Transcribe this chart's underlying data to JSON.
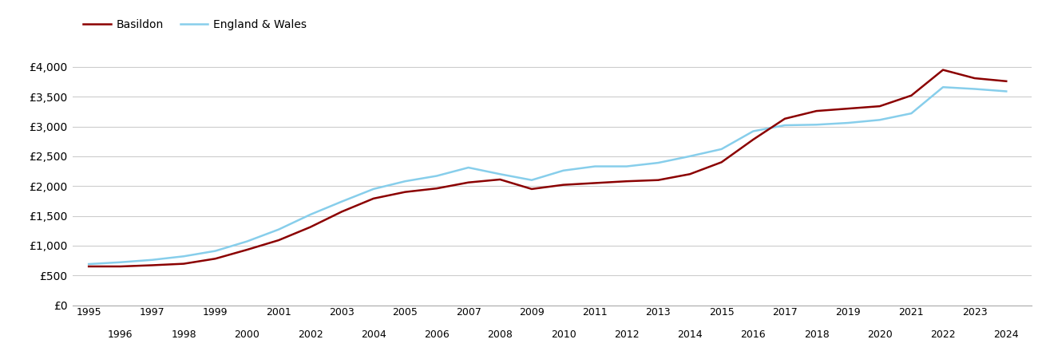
{
  "basildon": {
    "years": [
      1995,
      1996,
      1997,
      1998,
      1999,
      2000,
      2001,
      2002,
      2003,
      2004,
      2005,
      2006,
      2007,
      2008,
      2009,
      2010,
      2011,
      2012,
      2013,
      2014,
      2015,
      2016,
      2017,
      2018,
      2019,
      2020,
      2021,
      2022,
      2023,
      2024
    ],
    "values": [
      650,
      650,
      670,
      695,
      780,
      930,
      1090,
      1310,
      1570,
      1790,
      1900,
      1960,
      2060,
      2110,
      1950,
      2020,
      2050,
      2080,
      2100,
      2200,
      2400,
      2780,
      3130,
      3260,
      3300,
      3340,
      3520,
      3950,
      3810,
      3760
    ]
  },
  "england_wales": {
    "years": [
      1995,
      1996,
      1997,
      1998,
      1999,
      2000,
      2001,
      2002,
      2003,
      2004,
      2005,
      2006,
      2007,
      2008,
      2009,
      2010,
      2011,
      2012,
      2013,
      2014,
      2015,
      2016,
      2017,
      2018,
      2019,
      2020,
      2021,
      2022,
      2023,
      2024
    ],
    "values": [
      690,
      720,
      760,
      820,
      910,
      1070,
      1270,
      1520,
      1740,
      1950,
      2080,
      2170,
      2310,
      2200,
      2100,
      2260,
      2330,
      2330,
      2390,
      2500,
      2620,
      2920,
      3020,
      3030,
      3060,
      3110,
      3220,
      3660,
      3630,
      3590
    ]
  },
  "basildon_color": "#8B0000",
  "england_wales_color": "#87CEEB",
  "background_color": "#ffffff",
  "grid_color": "#cccccc",
  "yticks": [
    0,
    500,
    1000,
    1500,
    2000,
    2500,
    3000,
    3500,
    4000
  ],
  "ylim": [
    0,
    4400
  ],
  "xlim": [
    1994.5,
    2024.8
  ],
  "legend_labels": [
    "Basildon",
    "England & Wales"
  ],
  "line_width": 1.8,
  "odd_years": [
    1995,
    1997,
    1999,
    2001,
    2003,
    2005,
    2007,
    2009,
    2011,
    2013,
    2015,
    2017,
    2019,
    2021,
    2023
  ],
  "even_years": [
    1996,
    1998,
    2000,
    2002,
    2004,
    2006,
    2008,
    2010,
    2012,
    2014,
    2016,
    2018,
    2020,
    2022,
    2024
  ]
}
